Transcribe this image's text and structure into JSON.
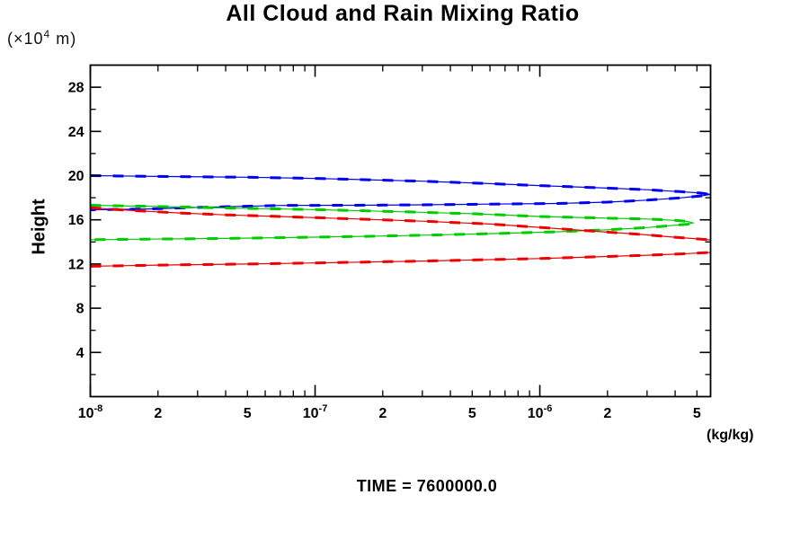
{
  "chart_data": {
    "type": "line",
    "title": "All Cloud and Rain Mixing Ratio",
    "caption": "TIME = 7600000.0",
    "x_axis": {
      "scale": "log",
      "min": 1e-08,
      "max": 5.75e-06,
      "unit": "(kg/kg)",
      "decades": [
        {
          "value": 1e-08,
          "base": "10",
          "exp": "-8"
        },
        {
          "value": 1e-07,
          "base": "10",
          "exp": "-7"
        },
        {
          "value": 1e-06,
          "base": "10",
          "exp": "-6"
        }
      ],
      "labeled_minors": [
        {
          "value": 2e-08,
          "label": "2"
        },
        {
          "value": 5e-08,
          "label": "5"
        },
        {
          "value": 2e-07,
          "label": "2"
        },
        {
          "value": 5e-07,
          "label": "5"
        },
        {
          "value": 2e-06,
          "label": "2"
        },
        {
          "value": 5e-06,
          "label": "5"
        }
      ]
    },
    "y_axis": {
      "label": "Height",
      "unit_prefix": "(×10",
      "unit_exponent": "4",
      "unit_suffix": " m)",
      "min": 0,
      "max": 30,
      "major_ticks": [
        4,
        8,
        12,
        16,
        20,
        24,
        28
      ],
      "minor_ticks": [
        2,
        6,
        10,
        14,
        18,
        22,
        26
      ]
    },
    "series": [
      {
        "name": "blue-profile",
        "color": "#0000ee",
        "paths": [
          [
            [
              1e-08,
              20.0
            ],
            [
              2e-08,
              19.93
            ],
            [
              5e-08,
              19.85
            ],
            [
              1e-07,
              19.75
            ],
            [
              3e-07,
              19.5
            ],
            [
              6e-07,
              19.28
            ],
            [
              1e-06,
              19.1
            ],
            [
              2e-06,
              18.87
            ],
            [
              3e-06,
              18.72
            ],
            [
              4.2e-06,
              18.55
            ],
            [
              5.2e-06,
              18.42
            ],
            [
              5.75e-06,
              18.3
            ],
            [
              5.2e-06,
              18.16
            ],
            [
              4.2e-06,
              17.98
            ],
            [
              3e-06,
              17.78
            ],
            [
              2e-06,
              17.6
            ],
            [
              1.2e-06,
              17.48
            ],
            [
              6e-07,
              17.42
            ],
            [
              3e-07,
              17.36
            ],
            [
              1.5e-07,
              17.32
            ],
            [
              7e-08,
              17.3
            ],
            [
              3e-08,
              17.12
            ],
            [
              1.8e-08,
              16.98
            ],
            [
              1e-08,
              16.9
            ]
          ]
        ]
      },
      {
        "name": "green-profile",
        "color": "#00cc00",
        "paths": [
          [
            [
              1e-08,
              17.32
            ],
            [
              2e-08,
              17.2
            ],
            [
              4e-08,
              17.07
            ],
            [
              1e-07,
              16.93
            ],
            [
              2.5e-07,
              16.72
            ],
            [
              5e-07,
              16.55
            ],
            [
              1e-06,
              16.3
            ],
            [
              1.8e-06,
              16.17
            ],
            [
              3e-06,
              16.07
            ],
            [
              4e-06,
              15.95
            ],
            [
              4.55e-06,
              15.85
            ],
            [
              4.8e-06,
              15.72
            ],
            [
              4.55e-06,
              15.6
            ],
            [
              3.8e-06,
              15.47
            ],
            [
              3e-06,
              15.3
            ],
            [
              2e-06,
              15.1
            ],
            [
              1.2e-06,
              14.92
            ],
            [
              6e-07,
              14.75
            ],
            [
              2.5e-07,
              14.57
            ],
            [
              1e-07,
              14.43
            ],
            [
              4e-08,
              14.32
            ],
            [
              1.8e-08,
              14.25
            ],
            [
              1e-08,
              14.2
            ]
          ]
        ]
      },
      {
        "name": "red-profile",
        "color": "#ee0000",
        "paths": [
          [
            [
              1e-08,
              17.1
            ],
            [
              1.5e-08,
              16.85
            ],
            [
              2.5e-08,
              16.62
            ],
            [
              4e-08,
              16.45
            ],
            [
              7e-08,
              16.3
            ],
            [
              1.5e-07,
              16.08
            ],
            [
              3e-07,
              15.88
            ],
            [
              6e-07,
              15.62
            ],
            [
              1e-06,
              15.32
            ],
            [
              1.8e-06,
              14.95
            ],
            [
              2.8e-06,
              14.68
            ],
            [
              4e-06,
              14.42
            ],
            [
              5e-06,
              14.28
            ],
            [
              5.75e-06,
              14.18
            ]
          ],
          [
            [
              1e-08,
              11.8
            ],
            [
              2e-08,
              11.9
            ],
            [
              5e-08,
              12.0
            ],
            [
              1e-07,
              12.1
            ],
            [
              3e-07,
              12.27
            ],
            [
              6e-07,
              12.4
            ],
            [
              1e-06,
              12.5
            ],
            [
              2e-06,
              12.68
            ],
            [
              3e-06,
              12.8
            ],
            [
              4.3e-06,
              12.92
            ],
            [
              5.75e-06,
              13.05
            ]
          ]
        ]
      }
    ]
  }
}
